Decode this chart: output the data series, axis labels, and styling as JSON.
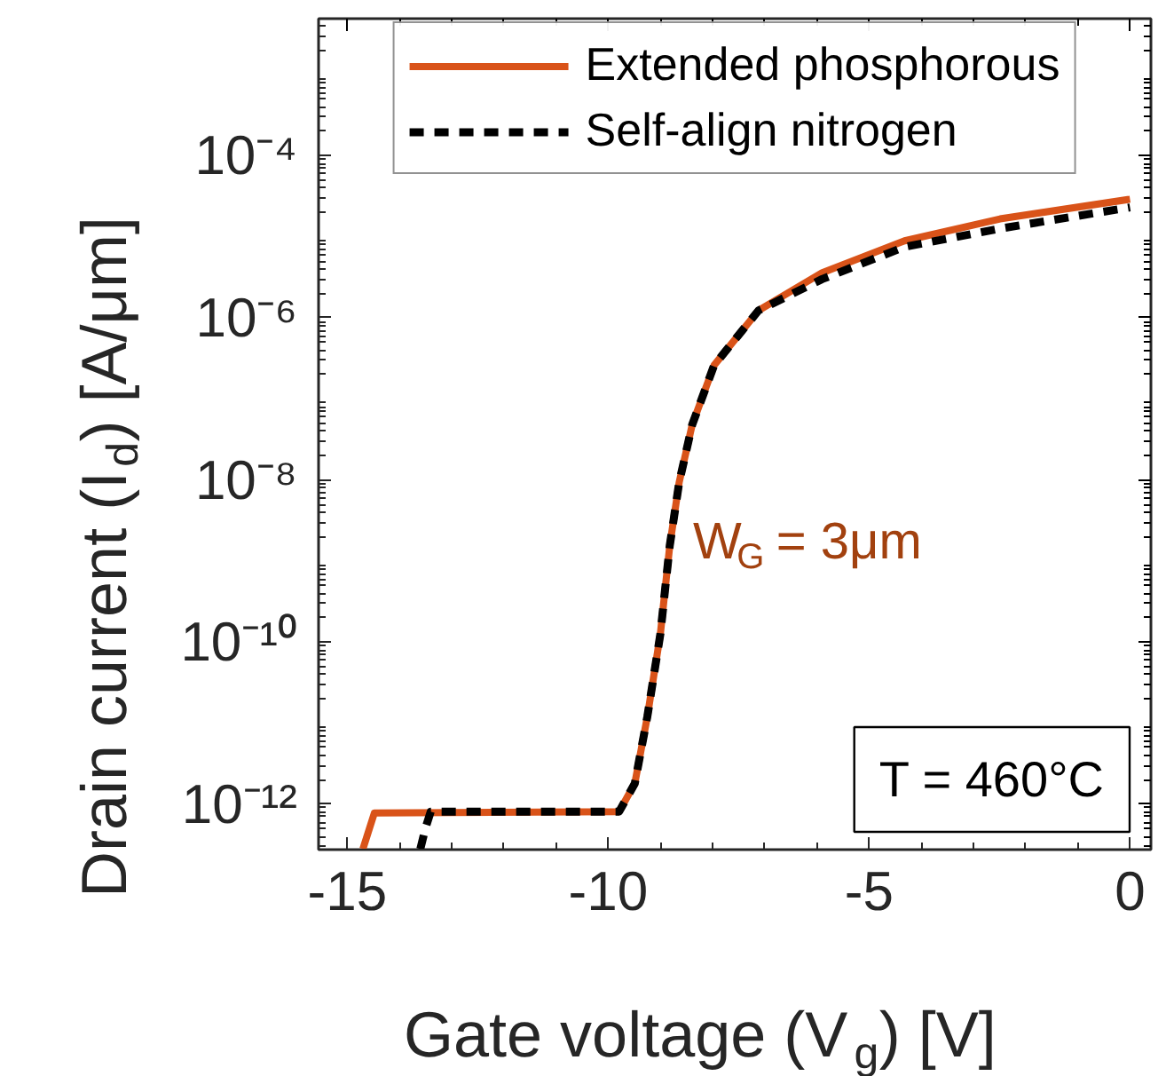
{
  "chart_data": {
    "type": "line",
    "xlabel": "Gate voltage (V$_{g}$) [V]",
    "ylabel": "Drain current (I$_{d}$) [A/μm]",
    "log": "y",
    "xlim": [
      -15.55,
      0.4
    ],
    "ylim": [
      2.75e-13,
      0.0049
    ],
    "xticks": [
      -15,
      -10,
      -5,
      0
    ],
    "yticks": [
      {
        "value": 1e-12,
        "label": "10⁻¹²"
      },
      {
        "value": 1e-10,
        "label": "10⁻¹⁰"
      },
      {
        "value": 1e-08,
        "label": "10⁻⁸"
      },
      {
        "value": 1e-06,
        "label": "10⁻⁶"
      },
      {
        "value": 0.0001,
        "label": "10⁻⁴"
      }
    ],
    "legend": "top",
    "grid": false,
    "series": [
      {
        "name": "Extended phosphorous",
        "color": "#d95319",
        "line_style": "solid",
        "x": [
          -14.7,
          -14.48,
          -9.79,
          -9.49,
          -9.25,
          -9.0,
          -8.82,
          -8.64,
          -8.39,
          -7.97,
          -7.12,
          -5.9,
          -4.32,
          -2.49,
          0
        ],
        "values": [
          2.8e-13,
          7.8e-13,
          8.1e-13,
          1.8e-12,
          1.2e-11,
          1.26e-10,
          1.55e-09,
          9.3e-09,
          4.8e-08,
          2.6e-07,
          1.23e-06,
          3.6e-06,
          8.9e-06,
          1.66e-05,
          2.9e-05
        ]
      },
      {
        "name": "Self-align nitrogen",
        "color": "#000000",
        "line_style": "dashed",
        "x": [
          -13.6,
          -13.5,
          -13.4,
          -9.79,
          -9.49,
          -9.25,
          -9.0,
          -8.82,
          -8.64,
          -8.39,
          -7.97,
          -7.12,
          -5.9,
          -4.32,
          -2.49,
          0
        ],
        "values": [
          2.8e-13,
          5.1e-13,
          8.1e-13,
          8.1e-13,
          1.8e-12,
          1.2e-11,
          1.26e-10,
          1.55e-09,
          9.3e-09,
          4.8e-08,
          2.6e-07,
          1.23e-06,
          3e-06,
          7.5e-06,
          1.26e-05,
          2.3e-05
        ]
      }
    ],
    "annotations": [
      "W$_{G}$ = 3μm",
      "T = 460°C"
    ]
  }
}
